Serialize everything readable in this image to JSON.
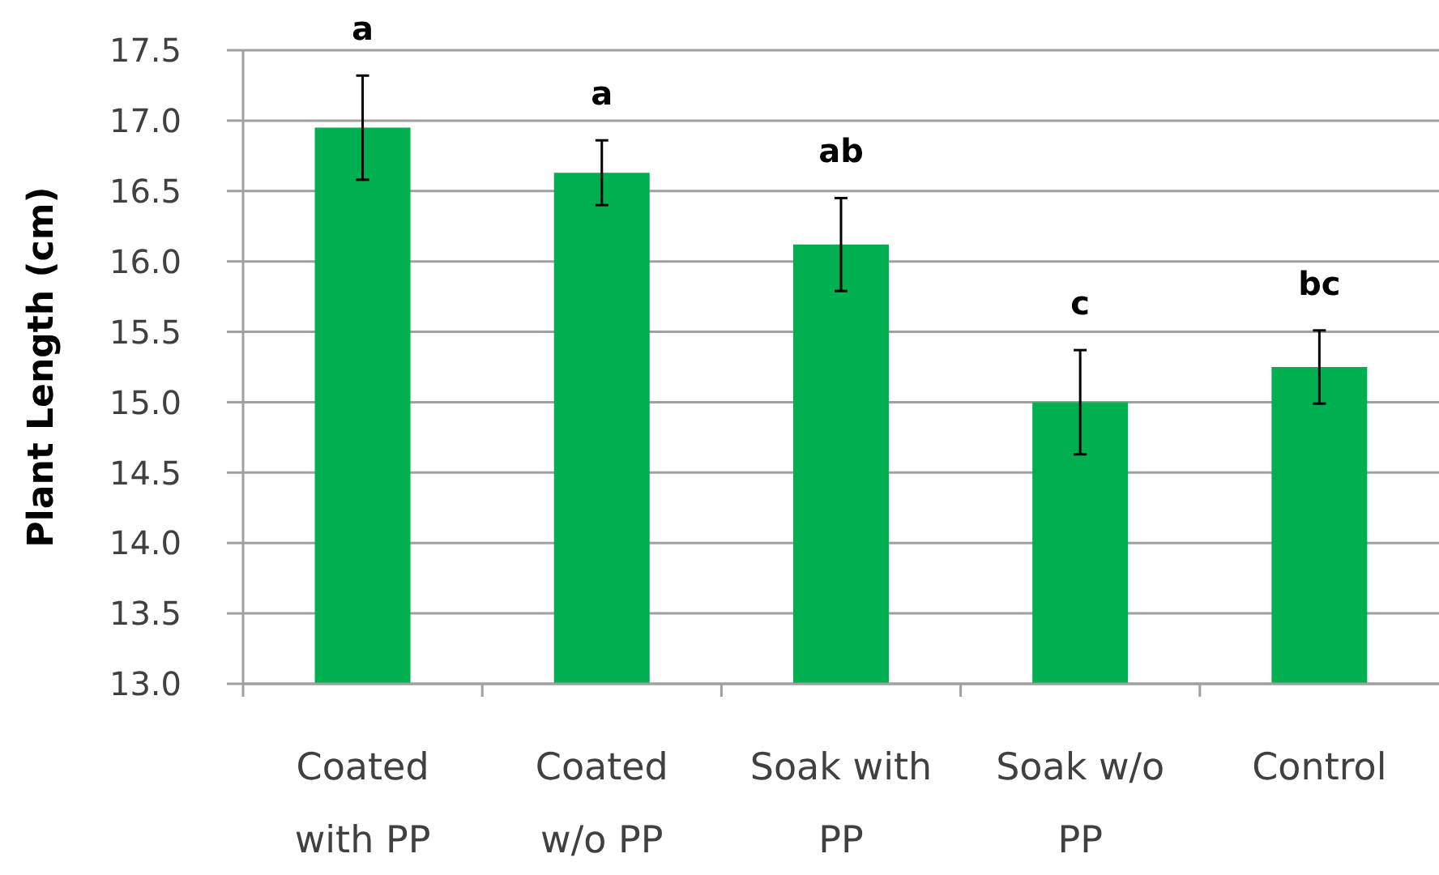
{
  "chart_data": {
    "type": "bar",
    "ylabel": "Plant Length (cm)",
    "categories": [
      "Coated with PP",
      "Coated w/o PP",
      "Soak with PP",
      "Soak w/o PP",
      "Control"
    ],
    "values": [
      16.95,
      16.63,
      16.12,
      15.0,
      15.25
    ],
    "errors": [
      0.37,
      0.23,
      0.33,
      0.37,
      0.26
    ],
    "color": "#00b050",
    "ylim": [
      13,
      17.5
    ],
    "yticks": [
      {
        "value": 13,
        "label": "13.0"
      },
      13.5,
      {
        "value": 14,
        "label": "14.0"
      },
      14.5,
      {
        "value": 15,
        "label": "15.0"
      },
      15.5,
      {
        "value": 16,
        "label": "16.0"
      },
      16.5,
      {
        "value": 17,
        "label": "17.0"
      },
      17.5
    ],
    "grid": "y",
    "annotations": [
      {
        "text": "a",
        "x": "Coated with PP",
        "y": 17.32
      },
      {
        "text": "a",
        "x": "Coated w/o PP",
        "y": 16.86
      },
      {
        "text": "ab",
        "x": "Soak with PP",
        "y": 16.45
      },
      {
        "text": "c",
        "x": "Soak w/o PP",
        "y": 15.37
      },
      {
        "text": "bc",
        "x": "Control",
        "y": 15.51
      }
    ]
  }
}
